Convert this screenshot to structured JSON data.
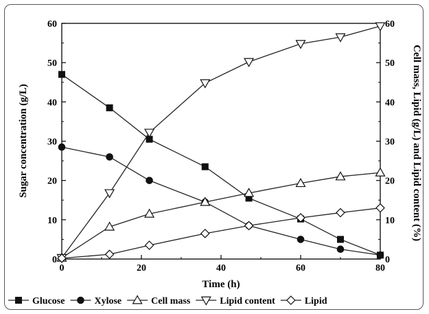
{
  "chart_data": {
    "type": "line",
    "xlabel": "Time (h)",
    "ylabel_left": "Sugar concentration (g/L)",
    "ylabel_right": "Cell mass, Lipid (g/L) and Lipid content (%)",
    "xlim": [
      0,
      80
    ],
    "ylim_left": [
      0,
      60
    ],
    "ylim_right": [
      0,
      60
    ],
    "xticks": [
      "0",
      "20",
      "40",
      "60",
      "80"
    ],
    "yticks_left": [
      "0",
      "10",
      "20",
      "30",
      "40",
      "50",
      "60"
    ],
    "yticks_right": [
      "0",
      "10",
      "20",
      "30",
      "40",
      "50",
      "60"
    ],
    "grid": false,
    "legend_position": "bottom",
    "series": [
      {
        "name": "Glucose",
        "axis": "left",
        "marker": "square",
        "x": [
          0,
          12,
          22,
          36,
          47,
          60,
          70,
          80
        ],
        "y": [
          47,
          38.5,
          30.5,
          23.5,
          15.5,
          10.2,
          5,
          1
        ]
      },
      {
        "name": "Xylose",
        "axis": "left",
        "marker": "circle",
        "x": [
          0,
          12,
          22,
          36,
          47,
          60,
          70,
          80
        ],
        "y": [
          28.5,
          26,
          20,
          14.5,
          8.5,
          5,
          2.5,
          1
        ]
      },
      {
        "name": "Cell mass",
        "axis": "right",
        "marker": "triangle-up",
        "x": [
          0,
          12,
          22,
          36,
          47,
          60,
          70,
          80
        ],
        "y": [
          0.3,
          8.2,
          11.5,
          14.5,
          16.8,
          19.3,
          21,
          22
        ]
      },
      {
        "name": "Lipid content",
        "axis": "right",
        "marker": "triangle-down",
        "x": [
          0,
          12,
          22,
          36,
          47,
          60,
          70,
          80
        ],
        "y": [
          0.3,
          16.8,
          32.2,
          44.8,
          50.2,
          54.8,
          56.5,
          59.3
        ]
      },
      {
        "name": "Lipid",
        "axis": "right",
        "marker": "diamond",
        "x": [
          0,
          12,
          22,
          36,
          47,
          60,
          70,
          80
        ],
        "y": [
          0.2,
          1.2,
          3.5,
          6.5,
          8.5,
          10.5,
          11.8,
          13
        ]
      }
    ]
  }
}
